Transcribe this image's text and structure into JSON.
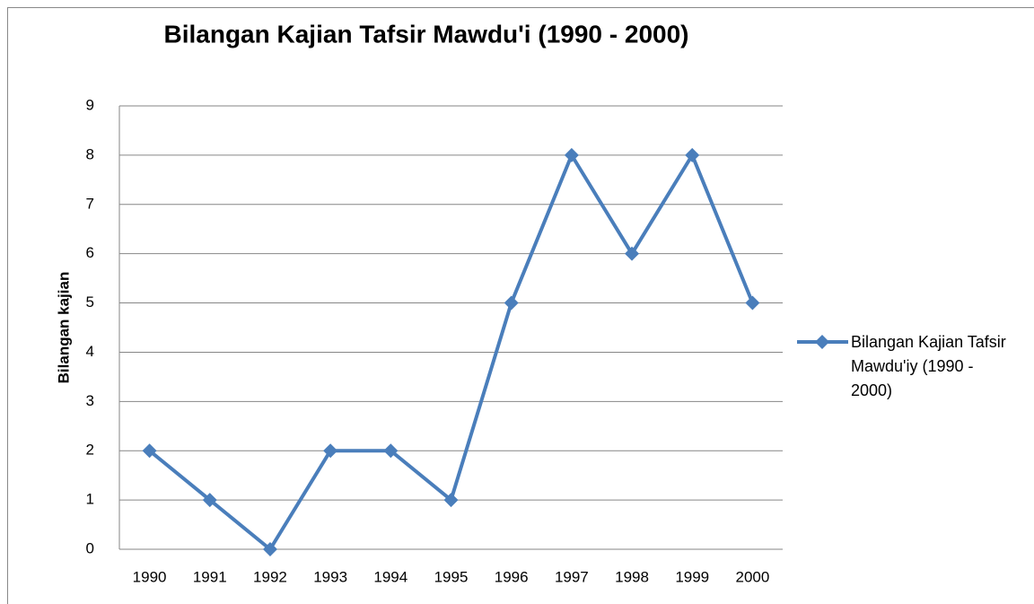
{
  "chart_data": {
    "type": "line",
    "title": "Bilangan Kajian Tafsir Mawdu'i (1990 - 2000)",
    "y_label": "Bilangan kajian",
    "categories": [
      "1990",
      "1991",
      "1992",
      "1993",
      "1994",
      "1995",
      "1996",
      "1997",
      "1998",
      "1999",
      "2000"
    ],
    "series": [
      {
        "name": "Bilangan Kajian Tafsir Mawdu'iy (1990 - 2000)",
        "color": "#4a7ebb",
        "values": [
          2,
          1,
          0,
          2,
          2,
          1,
          5,
          8,
          6,
          8,
          5
        ]
      }
    ],
    "ylim": [
      0,
      9
    ],
    "yticks": [
      0,
      1,
      2,
      3,
      4,
      5,
      6,
      7,
      8,
      9
    ],
    "grid": true,
    "legend": "right"
  }
}
